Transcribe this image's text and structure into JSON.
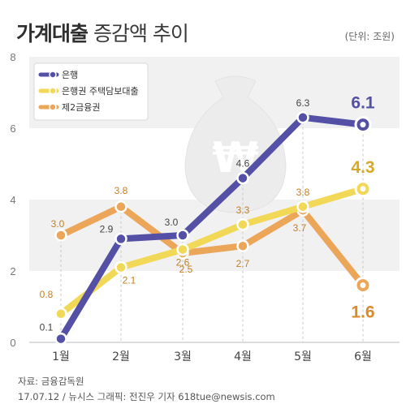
{
  "header": {
    "title_bold": "가계대출",
    "title_light": "증감액 추이",
    "unit": "(단위: 조원)"
  },
  "footer": {
    "source": "자료: 금융감독원",
    "credit": "17.07.12 / 뉴시스 그래픽: 전진우 기자 618tue@newsis.com"
  },
  "chart_data": {
    "type": "line",
    "categories": [
      "1월",
      "2월",
      "3월",
      "4월",
      "5월",
      "6월"
    ],
    "ylim": [
      0,
      8
    ],
    "yticks": [
      0,
      2,
      4,
      6,
      8
    ],
    "legend_position": "top-left",
    "series": [
      {
        "name": "은행",
        "color": "#5450a6",
        "values": [
          0.1,
          2.9,
          3.0,
          4.6,
          6.3,
          6.1
        ],
        "labels": [
          "0.1",
          "2.9",
          "3.0",
          "4.6",
          "6.3",
          "6.1"
        ]
      },
      {
        "name": "은행권 주택담보대출",
        "color": "#f2d857",
        "values": [
          0.8,
          2.1,
          2.6,
          3.3,
          3.8,
          4.3
        ],
        "labels": [
          "0.8",
          "2.1",
          "2.6",
          "3.3",
          "3.8",
          "4.3"
        ]
      },
      {
        "name": "제2금융권",
        "color": "#eba65a",
        "values": [
          3.0,
          3.8,
          2.5,
          2.7,
          3.7,
          1.6
        ],
        "labels": [
          "3.0",
          "3.8",
          "2.5",
          "2.7",
          "3.7",
          "1.6"
        ]
      }
    ]
  }
}
